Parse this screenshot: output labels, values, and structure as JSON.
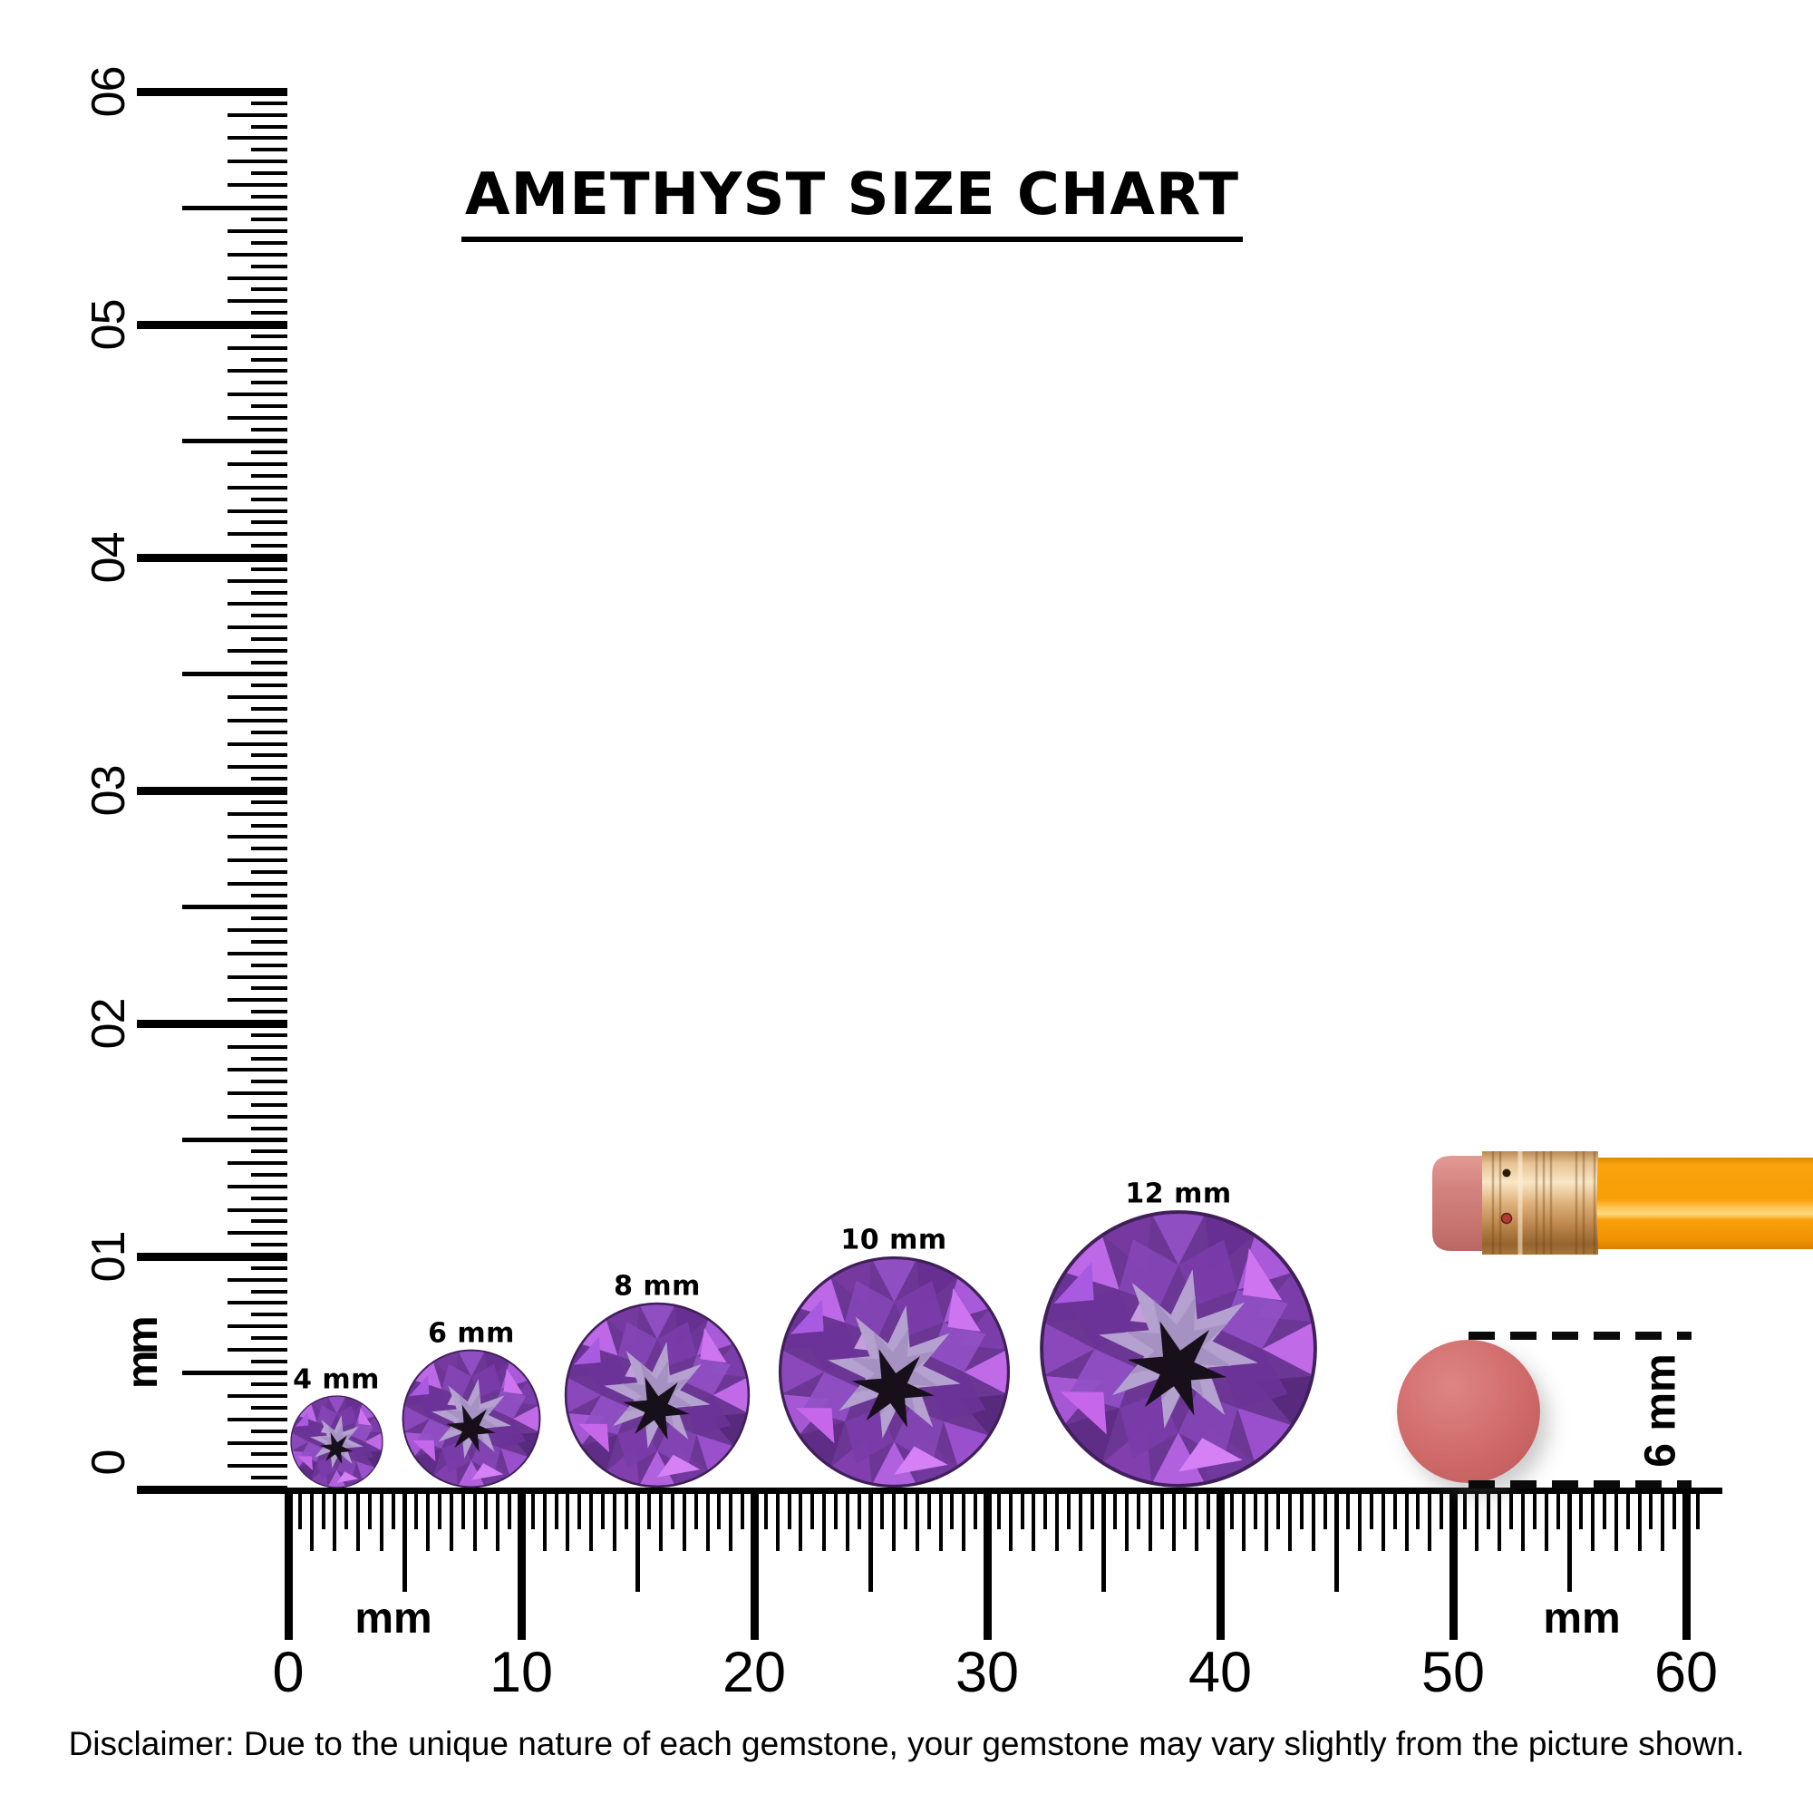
{
  "title": "AMETHYST SIZE CHART",
  "vertical_ruler": {
    "unit": "mm",
    "labels": [
      "60",
      "50",
      "40",
      "30",
      "20",
      "10",
      "0"
    ]
  },
  "horizontal_ruler": {
    "unit_left": "mm",
    "unit_right": "mm",
    "labels": [
      "0",
      "10",
      "20",
      "30",
      "40",
      "50",
      "60"
    ]
  },
  "gems": [
    {
      "label": "4 mm",
      "mm": 4
    },
    {
      "label": "6 mm",
      "mm": 6
    },
    {
      "label": "8 mm",
      "mm": 8
    },
    {
      "label": "10 mm",
      "mm": 10
    },
    {
      "label": "12 mm",
      "mm": 12
    }
  ],
  "eraser_measurement": {
    "label": "6 mm"
  },
  "disclaimer": "Disclaimer: Due to the unique nature of each gemstone, your gemstone may vary slightly from the picture shown.",
  "colors": {
    "ink": "#000000",
    "amethyst_purple": "#7a3ca8",
    "amethyst_light": "#b4a1d0",
    "amethyst_flash": "#c06ae8",
    "pencil_orange": "#f79c04",
    "ferrule_brass": "#e2b887",
    "eraser_pink": "#cd7a76",
    "measure_dot_pink": "#d06a6a"
  }
}
